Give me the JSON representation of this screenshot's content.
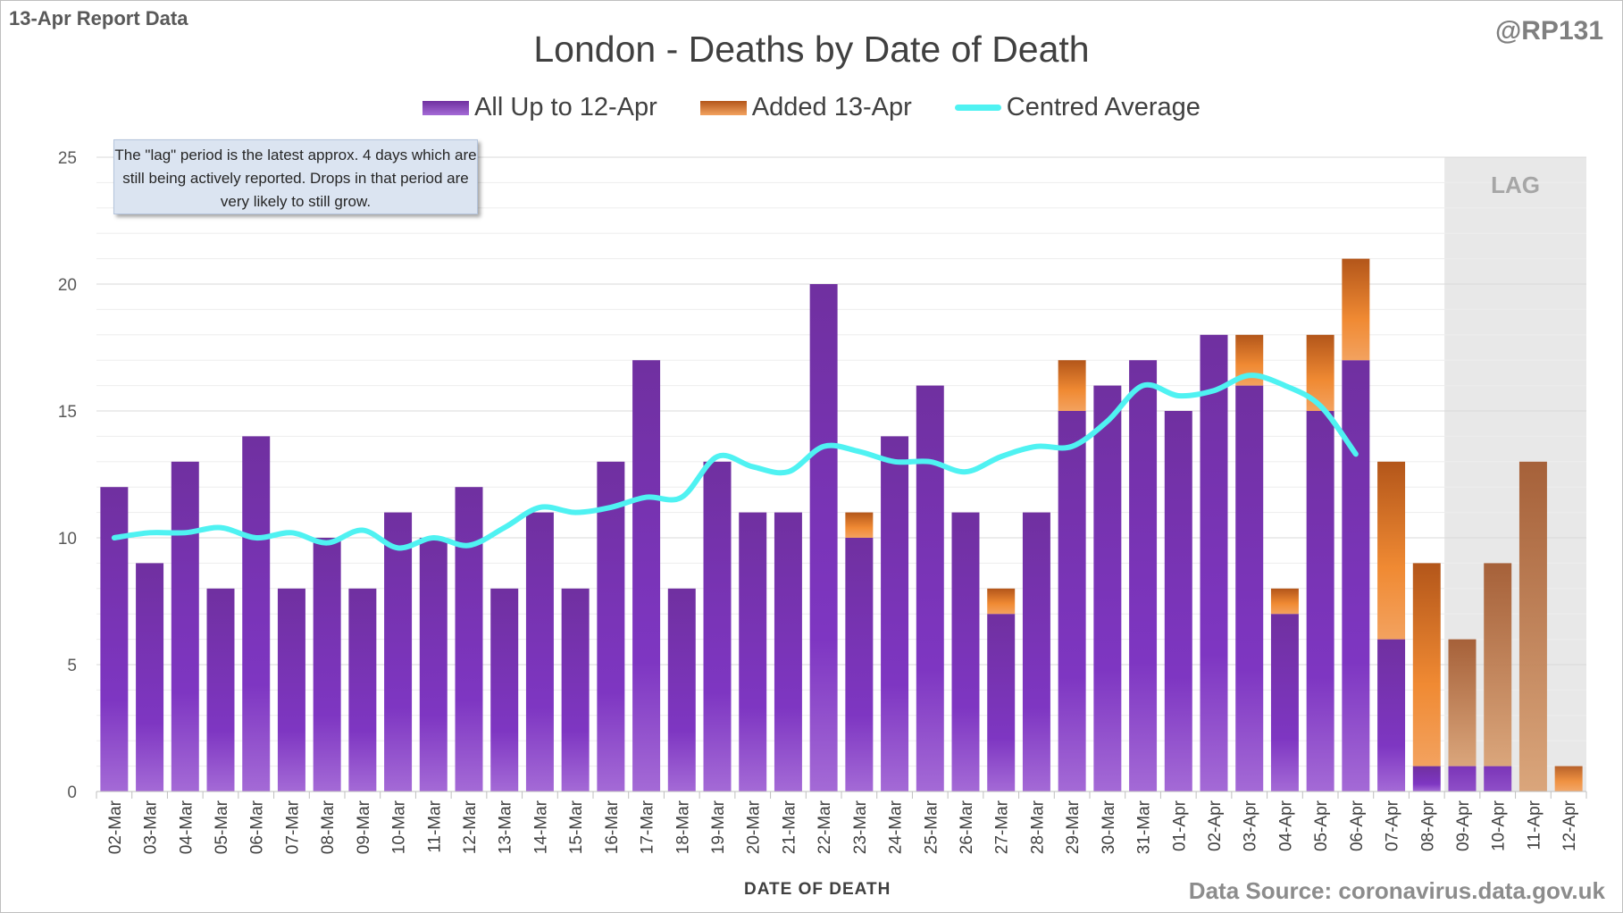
{
  "header": {
    "report_label": "13-Apr Report Data",
    "handle": "@RP131",
    "source": "Data Source: coronavirus.data.gov.uk",
    "note": "The \"lag\" period is the latest approx. 4 days which are still being actively reported.  Drops in that period are very likely to still grow.",
    "lag_label": "LAG"
  },
  "colors": {
    "primary": "#7b35b8",
    "added": "#e07a28",
    "average": "#4ff2f2",
    "lag_band": "#e8e8e8"
  },
  "chart_data": {
    "type": "bar",
    "title": "London - Deaths by Date of Death",
    "xlabel": "DATE OF DEATH",
    "ylabel": "",
    "ylim": [
      0,
      25
    ],
    "yticks": [
      0,
      5,
      10,
      15,
      20,
      25
    ],
    "grid": true,
    "stacked": true,
    "legend_position": "top",
    "lag_start_category": "09-Apr",
    "categories": [
      "02-Mar",
      "03-Mar",
      "04-Mar",
      "05-Mar",
      "06-Mar",
      "07-Mar",
      "08-Mar",
      "09-Mar",
      "10-Mar",
      "11-Mar",
      "12-Mar",
      "13-Mar",
      "14-Mar",
      "15-Mar",
      "16-Mar",
      "17-Mar",
      "18-Mar",
      "19-Mar",
      "20-Mar",
      "21-Mar",
      "22-Mar",
      "23-Mar",
      "24-Mar",
      "25-Mar",
      "26-Mar",
      "27-Mar",
      "28-Mar",
      "29-Mar",
      "30-Mar",
      "31-Mar",
      "01-Apr",
      "02-Apr",
      "03-Apr",
      "04-Apr",
      "05-Apr",
      "06-Apr",
      "07-Apr",
      "08-Apr",
      "09-Apr",
      "10-Apr",
      "11-Apr",
      "12-Apr"
    ],
    "series": [
      {
        "name": "All Up to 12-Apr",
        "kind": "bar",
        "values": [
          12,
          9,
          13,
          8,
          14,
          8,
          10,
          8,
          11,
          10,
          12,
          8,
          11,
          8,
          13,
          17,
          8,
          13,
          11,
          11,
          20,
          10,
          14,
          16,
          11,
          7,
          11,
          15,
          16,
          17,
          15,
          18,
          16,
          7,
          15,
          17,
          6,
          1,
          1,
          1,
          0,
          0
        ]
      },
      {
        "name": "Added 13-Apr",
        "kind": "bar",
        "values": [
          0,
          0,
          0,
          0,
          0,
          0,
          0,
          0,
          0,
          0,
          0,
          0,
          0,
          0,
          0,
          0,
          0,
          0,
          0,
          0,
          0,
          1,
          0,
          0,
          0,
          1,
          0,
          2,
          0,
          0,
          0,
          0,
          2,
          1,
          3,
          4,
          7,
          8,
          5,
          8,
          13,
          1
        ]
      },
      {
        "name": "Centred Average",
        "kind": "line",
        "values": [
          10.0,
          10.2,
          10.2,
          10.4,
          10.0,
          10.2,
          9.8,
          10.3,
          9.6,
          10.0,
          9.7,
          10.4,
          11.2,
          11.0,
          11.2,
          11.6,
          11.6,
          13.2,
          12.8,
          12.6,
          13.6,
          13.4,
          13.0,
          13.0,
          12.6,
          13.2,
          13.6,
          13.6,
          14.6,
          16.0,
          15.6,
          15.8,
          16.4,
          16.0,
          15.2,
          13.3,
          null,
          null,
          null,
          null,
          null,
          null
        ]
      }
    ]
  }
}
